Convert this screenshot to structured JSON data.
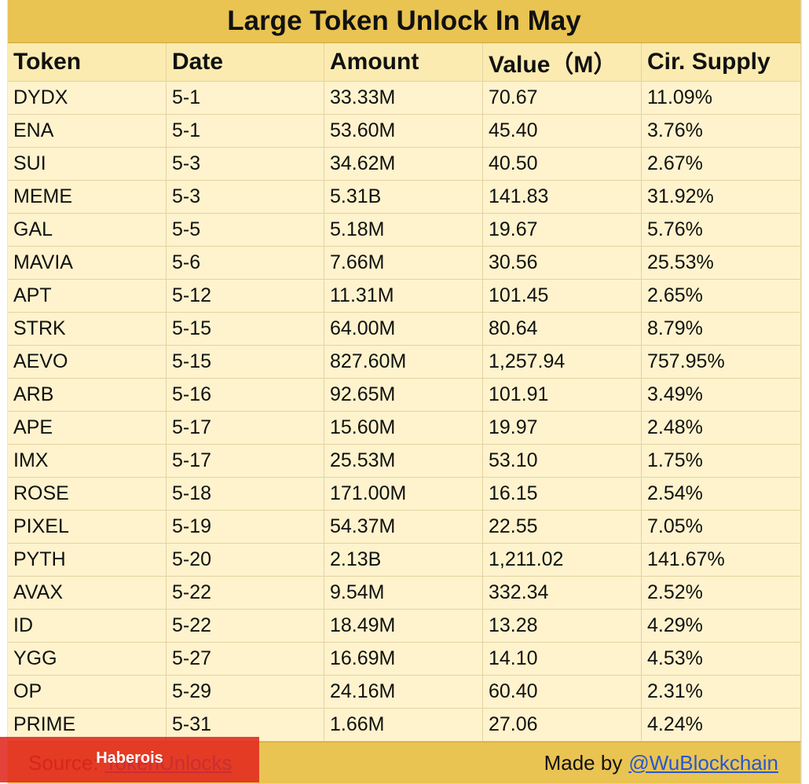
{
  "title": "Large Token Unlock In May",
  "headers": [
    "Token",
    "Date",
    "Amount",
    "Value（M）",
    "Cir. Supply"
  ],
  "rows": [
    [
      "DYDX",
      "5-1",
      "33.33M",
      "70.67",
      "11.09%"
    ],
    [
      "ENA",
      "5-1",
      "53.60M",
      "45.40",
      "3.76%"
    ],
    [
      "SUI",
      "5-3",
      "34.62M",
      "40.50",
      "2.67%"
    ],
    [
      "MEME",
      "5-3",
      "5.31B",
      "141.83",
      "31.92%"
    ],
    [
      "GAL",
      "5-5",
      "5.18M",
      "19.67",
      "5.76%"
    ],
    [
      "MAVIA",
      "5-6",
      "7.66M",
      "30.56",
      "25.53%"
    ],
    [
      "APT",
      "5-12",
      "11.31M",
      "101.45",
      "2.65%"
    ],
    [
      "STRK",
      "5-15",
      "64.00M",
      "80.64",
      "8.79%"
    ],
    [
      "AEVO",
      "5-15",
      "827.60M",
      "1,257.94",
      "757.95%"
    ],
    [
      "ARB",
      "5-16",
      "92.65M",
      "101.91",
      "3.49%"
    ],
    [
      "APE",
      "5-17",
      "15.60M",
      "19.97",
      "2.48%"
    ],
    [
      "IMX",
      "5-17",
      "25.53M",
      "53.10",
      "1.75%"
    ],
    [
      "ROSE",
      "5-18",
      "171.00M",
      "16.15",
      "2.54%"
    ],
    [
      "PIXEL",
      "5-19",
      "54.37M",
      "22.55",
      "7.05%"
    ],
    [
      "PYTH",
      "5-20",
      "2.13B",
      "1,211.02",
      "141.67%"
    ],
    [
      "AVAX",
      "5-22",
      "9.54M",
      "332.34",
      "2.52%"
    ],
    [
      "ID",
      "5-22",
      "18.49M",
      "13.28",
      "4.29%"
    ],
    [
      "YGG",
      "5-27",
      "16.69M",
      "14.10",
      "4.53%"
    ],
    [
      "OP",
      "5-29",
      "24.16M",
      "60.40",
      "2.31%"
    ],
    [
      "PRIME",
      "5-31",
      "1.66M",
      "27.06",
      "4.24%"
    ]
  ],
  "footer": {
    "source_label": "Source:",
    "source_link": "TokenUnlocks",
    "credit_label": "Made by",
    "credit_link": "@WuBlockchain"
  },
  "watermark": "Haberois"
}
